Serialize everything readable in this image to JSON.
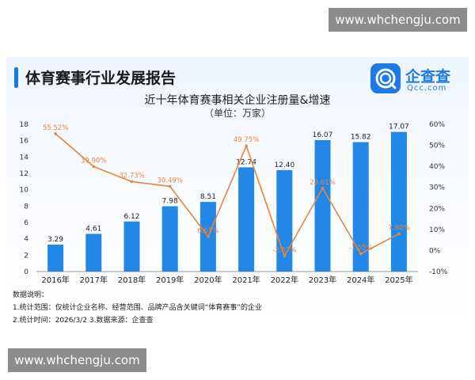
{
  "watermark": {
    "top": "www.whchengju.com",
    "bottom": "www.whchengju.com"
  },
  "report_title": "体育赛事行业发展报告",
  "logo": {
    "name": "企查查",
    "url": "Qcc.com",
    "color": "#1d79e8"
  },
  "chart_data": {
    "type": "bar",
    "title": "近十年体育赛事相关企业注册量&增速",
    "subtitle": "（单位：万家）",
    "categories": [
      "2016年",
      "2017年",
      "2018年",
      "2019年",
      "2020年",
      "2021年",
      "2022年",
      "2023年",
      "2024年",
      "2025年"
    ],
    "series": [
      {
        "type": "bar",
        "values": [
          3.29,
          4.61,
          6.12,
          7.98,
          8.51,
          12.74,
          12.4,
          16.07,
          15.82,
          17.07
        ],
        "labels": [
          "3.29",
          "4.61",
          "6.12",
          "7.98",
          "8.51",
          "12.74",
          "12.40",
          "16.07",
          "15.82",
          "17.07"
        ],
        "color": "#2188e8"
      },
      {
        "type": "line",
        "axis": "right",
        "values": [
          55.52,
          39.9,
          32.73,
          30.49,
          6.65,
          49.75,
          -2.67,
          29.61,
          -1.55,
          7.9
        ],
        "labels": [
          "55.52%",
          "39.90%",
          "32.73%",
          "30.49%",
          "6.65%",
          "49.75%",
          "-2.67%",
          "29.61%",
          "-1.55%",
          "7.90%"
        ],
        "color": "#e8853a"
      }
    ],
    "y_left": {
      "ylim": [
        0,
        18
      ],
      "ticks": [
        "0",
        "2",
        "4",
        "6",
        "8",
        "10",
        "12",
        "14",
        "16",
        "18"
      ]
    },
    "y_right": {
      "ylim": [
        -10,
        60
      ],
      "ticks": [
        "-10%",
        "0%",
        "10%",
        "20%",
        "30%",
        "40%",
        "50%",
        "60%"
      ]
    },
    "grid": false,
    "legend": "none"
  },
  "notes": {
    "heading": "数据说明：",
    "line1": "1.统计范围：仅统计企业名称、经营范围、品牌产品含关键词“体育赛事”的企业",
    "line2": "2.统计时间：2026/3/2  3.数据来源：企查查"
  }
}
